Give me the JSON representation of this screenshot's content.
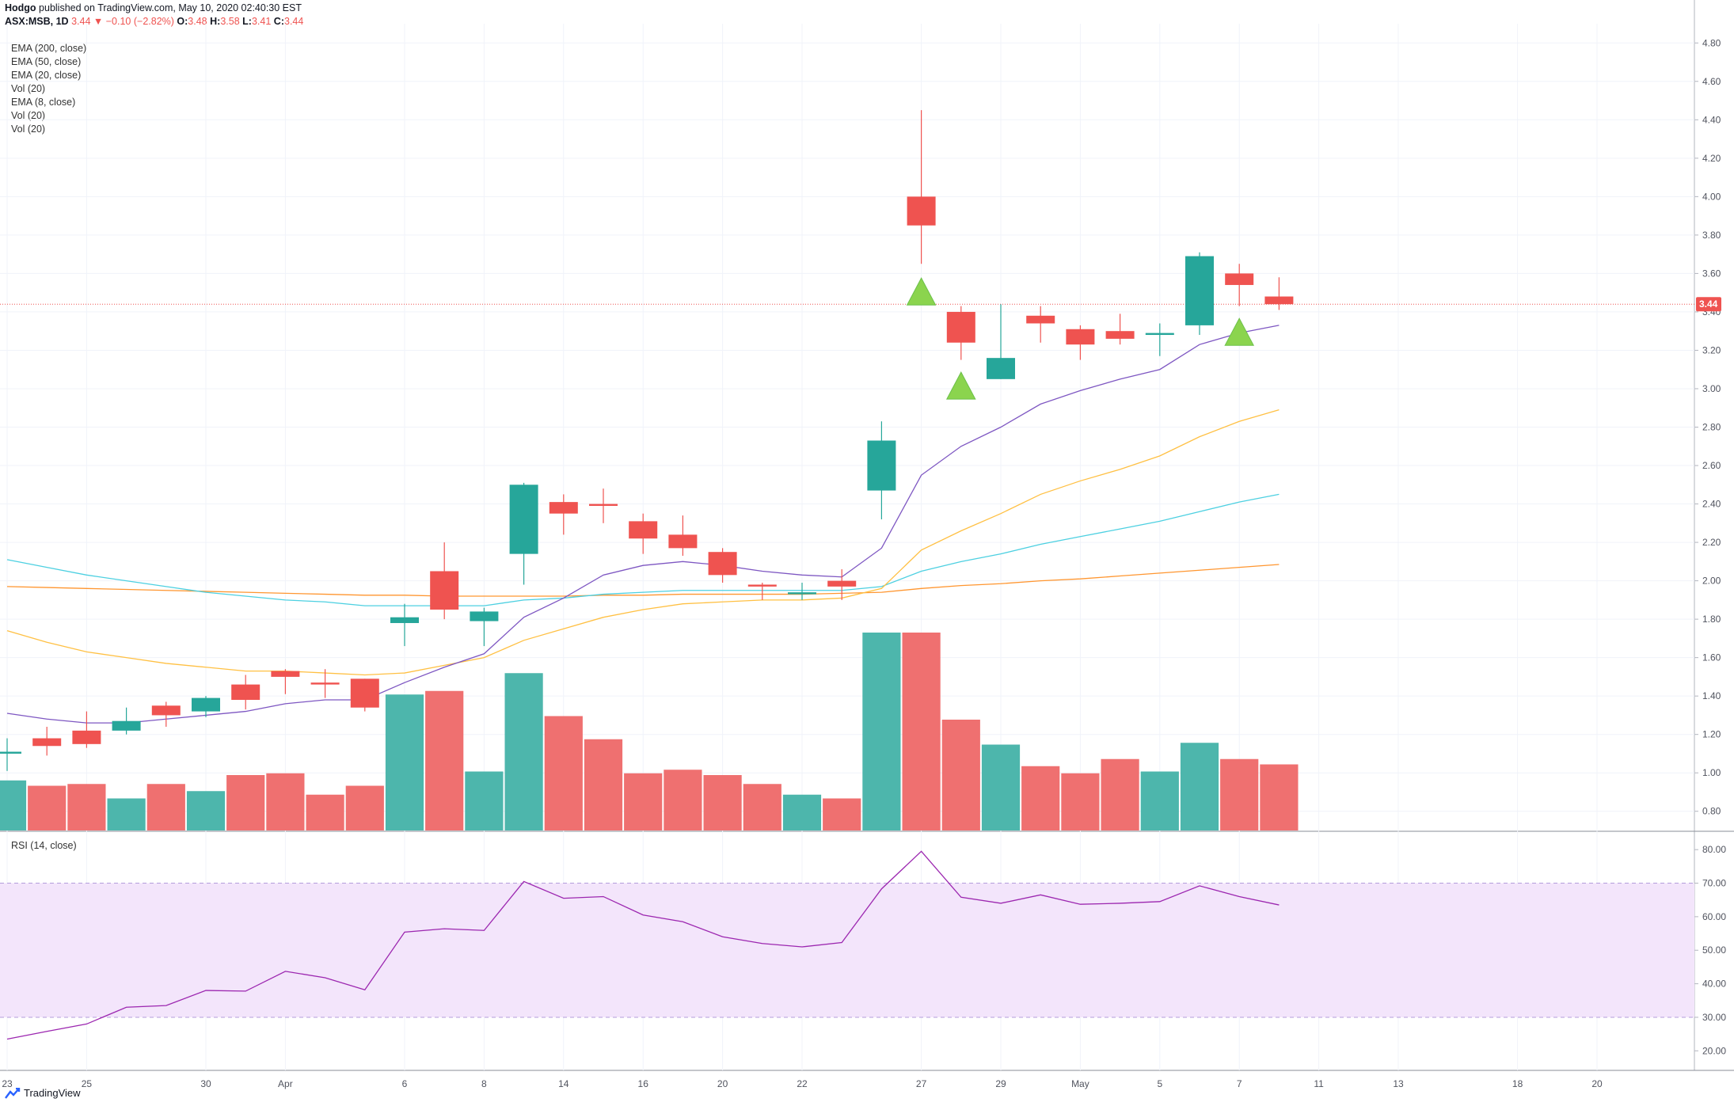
{
  "header": {
    "author": "Hodgo",
    "published": " published on TradingView.com, May 10, 2020 02:40:30 EST",
    "symbol": "ASX:MSB, 1D",
    "last": "3.44",
    "arrow": "▼",
    "change": "−0.10 (−2.82%)",
    "o_label": "O:",
    "o": "3.48",
    "h_label": "H:",
    "h": "3.58",
    "l_label": "L:",
    "l": "3.41",
    "c_label": "C:",
    "c": "3.44"
  },
  "indicators": [
    "EMA (200, close)",
    "EMA (50, close)",
    "EMA (20, close)",
    "Vol (20)",
    "EMA (8, close)",
    "Vol (20)",
    "Vol (20)"
  ],
  "rsi_label": "RSI (14, close)",
  "price_tag": "3.44",
  "footer": {
    "brand": "TradingView",
    "logo_icon": "tradingview-logo-icon"
  },
  "colors": {
    "up": "#26a69a",
    "down": "#ef5350",
    "vol_up": "#4db6ac",
    "vol_down": "#ef7070",
    "ema8": "#7e57c2",
    "ema20": "#ffc043",
    "ema50": "#4dd0e1",
    "ema200": "#ff9630",
    "rsi": "#9c27b0",
    "signal": "#8bd44e"
  },
  "chart_data": {
    "type": "candlestick",
    "price_axis": [
      "4.80",
      "4.60",
      "4.40",
      "4.20",
      "4.00",
      "3.80",
      "3.60",
      "3.40",
      "3.20",
      "3.00",
      "2.80",
      "2.60",
      "2.40",
      "2.20",
      "2.00",
      "1.80",
      "1.60",
      "1.40",
      "1.20",
      "1.00",
      "0.80"
    ],
    "price_ylim": [
      0.7,
      4.9
    ],
    "rsi_axis": [
      "80.00",
      "70.00",
      "60.00",
      "50.00",
      "40.00",
      "30.00",
      "20.00"
    ],
    "rsi_ylim": [
      17,
      85
    ],
    "rsi_band": [
      30,
      70
    ],
    "x_ticks": [
      "23",
      "25",
      "30",
      "Apr",
      "6",
      "8",
      "14",
      "16",
      "20",
      "22",
      "27",
      "29",
      "May",
      "5",
      "7",
      "11",
      "13",
      "18",
      "20"
    ],
    "candles": [
      {
        "o": 1.1,
        "h": 1.18,
        "l": 1.01,
        "c": 1.11
      },
      {
        "o": 1.18,
        "h": 1.24,
        "l": 1.09,
        "c": 1.14
      },
      {
        "o": 1.22,
        "h": 1.32,
        "l": 1.13,
        "c": 1.15
      },
      {
        "o": 1.22,
        "h": 1.34,
        "l": 1.2,
        "c": 1.27
      },
      {
        "o": 1.35,
        "h": 1.37,
        "l": 1.24,
        "c": 1.3
      },
      {
        "o": 1.32,
        "h": 1.4,
        "l": 1.29,
        "c": 1.39
      },
      {
        "o": 1.46,
        "h": 1.51,
        "l": 1.33,
        "c": 1.38
      },
      {
        "o": 1.53,
        "h": 1.54,
        "l": 1.41,
        "c": 1.5
      },
      {
        "o": 1.47,
        "h": 1.54,
        "l": 1.39,
        "c": 1.46
      },
      {
        "o": 1.49,
        "h": 1.49,
        "l": 1.32,
        "c": 1.34
      },
      {
        "o": 1.78,
        "h": 1.88,
        "l": 1.66,
        "c": 1.81
      },
      {
        "o": 2.05,
        "h": 2.2,
        "l": 1.8,
        "c": 1.85
      },
      {
        "o": 1.79,
        "h": 1.86,
        "l": 1.66,
        "c": 1.84
      },
      {
        "o": 2.14,
        "h": 2.51,
        "l": 1.98,
        "c": 2.5
      },
      {
        "o": 2.41,
        "h": 2.45,
        "l": 2.24,
        "c": 2.35
      },
      {
        "o": 2.4,
        "h": 2.48,
        "l": 2.3,
        "c": 2.39
      },
      {
        "o": 2.31,
        "h": 2.35,
        "l": 2.14,
        "c": 2.22
      },
      {
        "o": 2.24,
        "h": 2.34,
        "l": 2.13,
        "c": 2.17
      },
      {
        "o": 2.15,
        "h": 2.17,
        "l": 1.99,
        "c": 2.03
      },
      {
        "o": 1.98,
        "h": 1.99,
        "l": 1.9,
        "c": 1.97
      },
      {
        "o": 1.93,
        "h": 1.99,
        "l": 1.9,
        "c": 1.94
      },
      {
        "o": 2.0,
        "h": 2.06,
        "l": 1.9,
        "c": 1.97
      },
      {
        "o": 2.47,
        "h": 2.83,
        "l": 2.32,
        "c": 2.73
      },
      {
        "o": 4.0,
        "h": 4.45,
        "l": 3.65,
        "c": 3.85
      },
      {
        "o": 3.4,
        "h": 3.43,
        "l": 3.15,
        "c": 3.24
      },
      {
        "o": 3.05,
        "h": 3.44,
        "l": 3.05,
        "c": 3.16
      },
      {
        "o": 3.38,
        "h": 3.43,
        "l": 3.24,
        "c": 3.34
      },
      {
        "o": 3.31,
        "h": 3.33,
        "l": 3.15,
        "c": 3.23
      },
      {
        "o": 3.3,
        "h": 3.39,
        "l": 3.23,
        "c": 3.26
      },
      {
        "o": 3.28,
        "h": 3.34,
        "l": 3.17,
        "c": 3.29
      },
      {
        "o": 3.33,
        "h": 3.71,
        "l": 3.28,
        "c": 3.69
      },
      {
        "o": 3.6,
        "h": 3.65,
        "l": 3.43,
        "c": 3.54
      },
      {
        "o": 3.48,
        "h": 3.58,
        "l": 3.41,
        "c": 3.44
      }
    ],
    "volume_rel": [
      0.253,
      0.226,
      0.235,
      0.162,
      0.235,
      0.199,
      0.28,
      0.289,
      0.181,
      0.226,
      0.687,
      0.705,
      0.298,
      0.795,
      0.578,
      0.461,
      0.289,
      0.307,
      0.28,
      0.235,
      0.181,
      0.162,
      1.0,
      1.0,
      0.56,
      0.434,
      0.325,
      0.289,
      0.361,
      0.298,
      0.443,
      0.361,
      0.334
    ],
    "ema8": [
      1.31,
      1.28,
      1.26,
      1.26,
      1.28,
      1.3,
      1.32,
      1.36,
      1.38,
      1.38,
      1.47,
      1.55,
      1.62,
      1.81,
      1.91,
      2.03,
      2.08,
      2.1,
      2.08,
      2.05,
      2.03,
      2.02,
      2.17,
      2.55,
      2.7,
      2.8,
      2.92,
      2.99,
      3.05,
      3.1,
      3.23,
      3.29,
      3.33
    ],
    "ema20": [
      1.74,
      1.68,
      1.63,
      1.6,
      1.57,
      1.55,
      1.53,
      1.53,
      1.52,
      1.51,
      1.52,
      1.56,
      1.6,
      1.69,
      1.75,
      1.81,
      1.85,
      1.88,
      1.89,
      1.9,
      1.9,
      1.91,
      1.96,
      2.16,
      2.26,
      2.35,
      2.45,
      2.52,
      2.58,
      2.65,
      2.75,
      2.83,
      2.89
    ],
    "ema50": [
      2.11,
      2.07,
      2.03,
      2.0,
      1.97,
      1.94,
      1.92,
      1.9,
      1.89,
      1.87,
      1.87,
      1.87,
      1.87,
      1.9,
      1.91,
      1.93,
      1.94,
      1.95,
      1.95,
      1.95,
      1.95,
      1.95,
      1.97,
      2.05,
      2.1,
      2.14,
      2.19,
      2.23,
      2.27,
      2.31,
      2.36,
      2.41,
      2.45
    ],
    "ema200": [
      1.97,
      1.965,
      1.96,
      1.955,
      1.95,
      1.945,
      1.94,
      1.935,
      1.93,
      1.925,
      1.925,
      1.92,
      1.92,
      1.92,
      1.92,
      1.925,
      1.925,
      1.93,
      1.93,
      1.93,
      1.93,
      1.935,
      1.94,
      1.96,
      1.975,
      1.985,
      2.0,
      2.01,
      2.025,
      2.04,
      2.055,
      2.07,
      2.085
    ],
    "rsi": [
      23.5,
      25.8,
      28.0,
      33.0,
      33.5,
      38.0,
      37.8,
      43.7,
      41.8,
      38.2,
      55.4,
      56.4,
      55.9,
      70.5,
      65.5,
      66.0,
      60.5,
      58.5,
      54.0,
      52.0,
      51.0,
      52.3,
      68.3,
      79.5,
      65.8,
      64.0,
      66.5,
      63.7,
      64.0,
      64.5,
      69.2,
      66.0,
      63.5
    ],
    "signals": [
      {
        "index": 23,
        "price": 3.51
      },
      {
        "index": 24,
        "price": 3.02
      },
      {
        "index": 31,
        "price": 3.3
      }
    ]
  }
}
